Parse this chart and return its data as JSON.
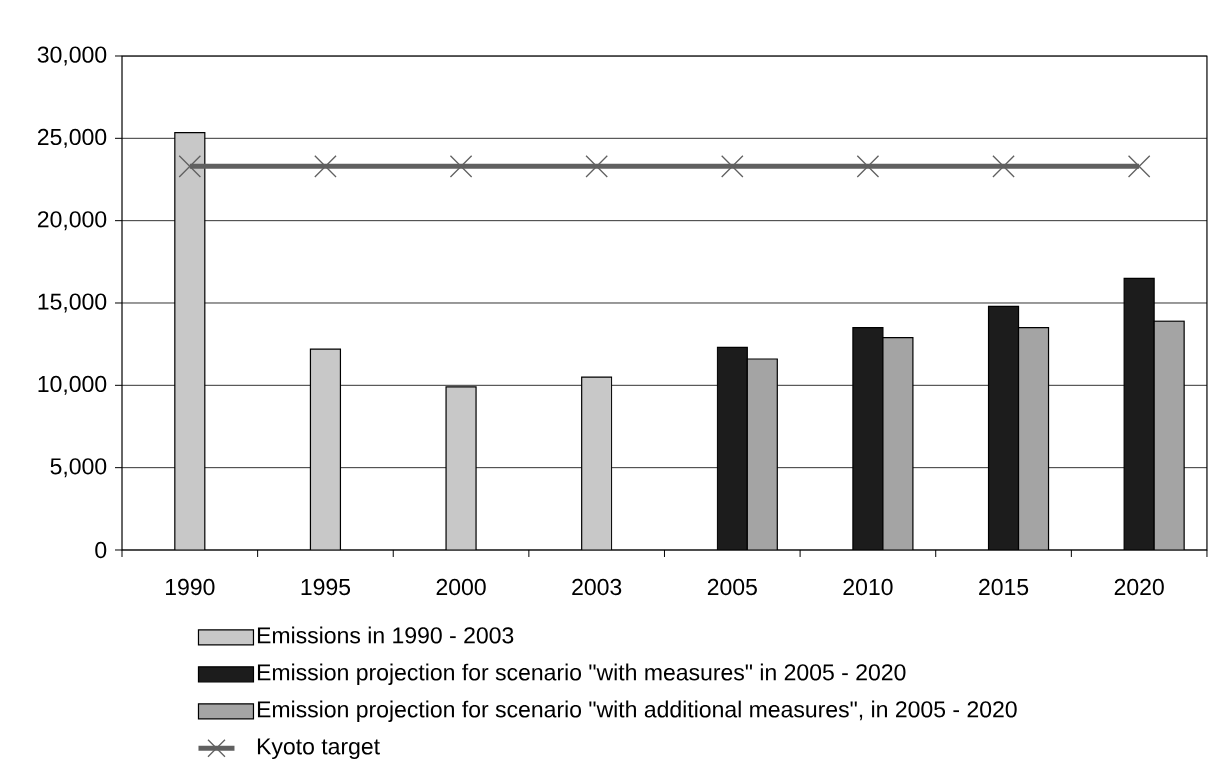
{
  "chart_data": {
    "type": "bar",
    "categories": [
      "1990",
      "1995",
      "2000",
      "2003",
      "2005",
      "2010",
      "2015",
      "2020"
    ],
    "series": [
      {
        "name": "Emissions in 1990 - 2003",
        "color": "#c8c8c8",
        "values": [
          25350,
          12200,
          9900,
          10500,
          null,
          null,
          null,
          null
        ]
      },
      {
        "name": "Emission projection for scenario \"with measures\" in 2005 - 2020",
        "color": "#1c1c1c",
        "values": [
          null,
          null,
          null,
          null,
          12300,
          13500,
          14800,
          16500
        ]
      },
      {
        "name": "Emission projection for scenario \"with additional measures\", in 2005 - 2020",
        "color": "#a4a4a4",
        "values": [
          null,
          null,
          null,
          null,
          11600,
          12900,
          13500,
          13900
        ]
      },
      {
        "name": "Kyoto target",
        "type": "line",
        "color": "#606060",
        "marker": "cross",
        "values": [
          23300,
          23300,
          23300,
          23300,
          23300,
          23300,
          23300,
          23300
        ]
      }
    ],
    "ylim": [
      0,
      30000
    ],
    "yticks": [
      0,
      {
        "value": 5000,
        "label": "5,000"
      },
      {
        "value": 10000,
        "label": "10,000"
      },
      {
        "value": 15000,
        "label": "15,000"
      },
      {
        "value": 20000,
        "label": "20,000"
      },
      {
        "value": 25000,
        "label": "25,000"
      },
      {
        "value": 30000,
        "label": "30,000"
      }
    ],
    "grid": "y",
    "legend": "bottom"
  }
}
